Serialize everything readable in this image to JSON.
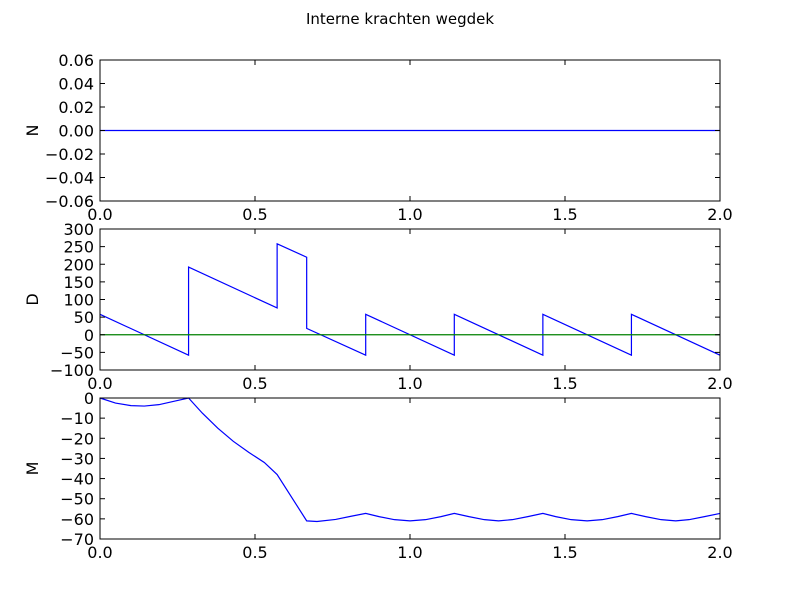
{
  "figure_title": "Interne krachten wegdek",
  "chart_data": [
    {
      "type": "line",
      "ylabel": "N",
      "xlim": [
        0.0,
        2.0
      ],
      "ylim": [
        -0.06,
        0.06
      ],
      "xticks": [
        "0.0",
        "0.5",
        "1.0",
        "1.5",
        "2.0"
      ],
      "yticks": [
        "0.06",
        "0.04",
        "0.02",
        "0.00",
        "−0.02",
        "−0.04",
        "−0.06"
      ],
      "ytick_values": [
        0.06,
        0.04,
        0.02,
        0.0,
        -0.02,
        -0.04,
        -0.06
      ],
      "xtick_values": [
        0.0,
        0.5,
        1.0,
        1.5,
        2.0
      ],
      "series": [
        {
          "color": "#0000ff",
          "x": [
            0.0,
            2.0
          ],
          "y": [
            0.0,
            0.0
          ]
        }
      ]
    },
    {
      "type": "line",
      "ylabel": "D",
      "xlim": [
        0.0,
        2.0
      ],
      "ylim": [
        -100,
        300
      ],
      "xticks": [
        "0.0",
        "0.5",
        "1.0",
        "1.5",
        "2.0"
      ],
      "yticks": [
        "300",
        "250",
        "200",
        "150",
        "100",
        "50",
        "0",
        "−50",
        "−100"
      ],
      "ytick_values": [
        300,
        250,
        200,
        150,
        100,
        50,
        0,
        -50,
        -100
      ],
      "xtick_values": [
        0.0,
        0.5,
        1.0,
        1.5,
        2.0
      ],
      "series": [
        {
          "color": "#0000ff",
          "x": [
            0.0,
            0.2857,
            0.2857,
            0.5714,
            0.5714,
            0.6667,
            0.6667,
            0.8571,
            0.8571,
            1.1429,
            1.1429,
            1.4286,
            1.4286,
            1.7143,
            1.7143,
            2.0
          ],
          "y": [
            58,
            -58,
            192,
            76,
            258,
            220,
            18,
            -58,
            58,
            -58,
            58,
            -58,
            58,
            -58,
            58,
            -58
          ]
        },
        {
          "color": "#008000",
          "x": [
            0.0,
            2.0
          ],
          "y": [
            0,
            0
          ]
        }
      ]
    },
    {
      "type": "line",
      "ylabel": "M",
      "xlim": [
        0.0,
        2.0
      ],
      "ylim": [
        -70,
        0
      ],
      "xticks": [
        "0.0",
        "0.5",
        "1.0",
        "1.5",
        "2.0"
      ],
      "yticks": [
        "0",
        "−10",
        "−20",
        "−30",
        "−40",
        "−50",
        "−60",
        "−70"
      ],
      "ytick_values": [
        0,
        -10,
        -20,
        -30,
        -40,
        -50,
        -60,
        -70
      ],
      "xtick_values": [
        0.0,
        0.5,
        1.0,
        1.5,
        2.0
      ],
      "series": [
        {
          "color": "#0000ff",
          "x": [
            0.0,
            0.05,
            0.1,
            0.1429,
            0.19,
            0.24,
            0.2857,
            0.33,
            0.38,
            0.43,
            0.48,
            0.53,
            0.5714,
            0.6667,
            0.7,
            0.76,
            0.81,
            0.8571,
            0.9,
            0.95,
            1.0,
            1.05,
            1.1,
            1.1429,
            1.19,
            1.24,
            1.2857,
            1.33,
            1.38,
            1.4286,
            1.47,
            1.52,
            1.5714,
            1.62,
            1.67,
            1.7143,
            1.76,
            1.81,
            1.8571,
            1.9,
            1.95,
            2.0
          ],
          "y": [
            0.0,
            -2.5,
            -3.8,
            -4.0,
            -3.3,
            -1.6,
            0.0,
            -7.5,
            -15.0,
            -21.5,
            -27.0,
            -32.0,
            -38.0,
            -61.0,
            -61.3,
            -60.3,
            -58.7,
            -57.3,
            -58.9,
            -60.4,
            -61.0,
            -60.4,
            -58.9,
            -57.3,
            -58.9,
            -60.4,
            -61.0,
            -60.4,
            -58.9,
            -57.3,
            -58.9,
            -60.4,
            -61.0,
            -60.4,
            -58.9,
            -57.3,
            -58.9,
            -60.4,
            -61.0,
            -60.4,
            -58.9,
            -57.3
          ]
        }
      ]
    }
  ]
}
